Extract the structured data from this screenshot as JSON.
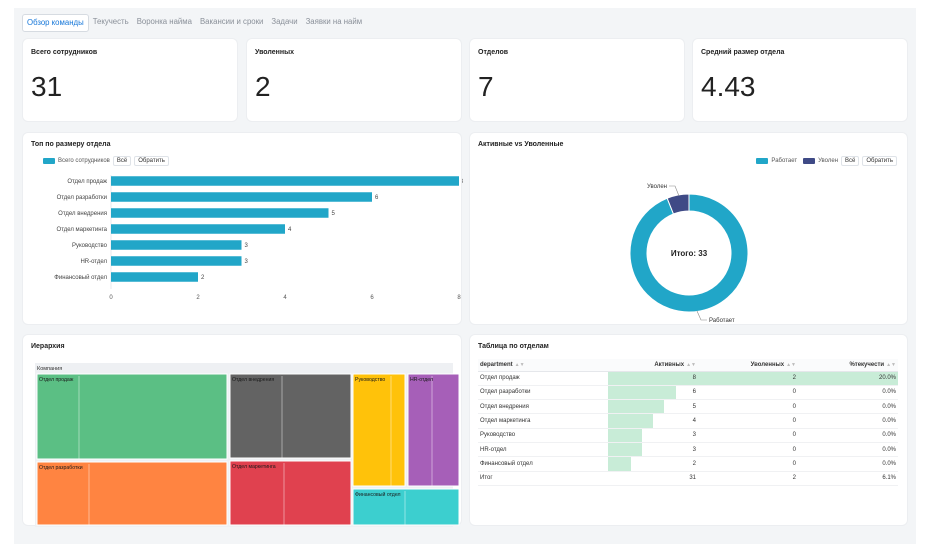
{
  "tabs": [
    {
      "label": "Обзор команды",
      "active": true
    },
    {
      "label": "Текучесть",
      "active": false
    },
    {
      "label": "Воронка найма",
      "active": false
    },
    {
      "label": "Вакансии и сроки",
      "active": false
    },
    {
      "label": "Задачи",
      "active": false
    },
    {
      "label": "Заявки на найм",
      "active": false
    }
  ],
  "kpis": [
    {
      "title": "Всего сотрудников",
      "value": "31"
    },
    {
      "title": "Уволенных",
      "value": "2"
    },
    {
      "title": "Отделов",
      "value": "7"
    },
    {
      "title": "Средний размер отдела",
      "value": "4.43"
    }
  ],
  "bar_panel": {
    "title": "Топ по размеру отдела",
    "legend_label": "Всего сотрудников",
    "btn_all": "Всё",
    "btn_invert": "Обратить",
    "color": "#21a6c8"
  },
  "donut_panel": {
    "title": "Активные vs Уволенные",
    "legend": [
      {
        "label": "Работает",
        "color": "#21a6c8"
      },
      {
        "label": "Уволен",
        "color": "#3f4a86"
      }
    ],
    "btn_all": "Всё",
    "btn_invert": "Обратить",
    "center_label": "Итого: 33",
    "callout_top": "Уволен",
    "callout_bottom": "Работает"
  },
  "treemap_panel": {
    "title": "Иерархия",
    "root_label": "Компания",
    "nodes": [
      {
        "label": "Отдел продаж",
        "color": "#5bbf84"
      },
      {
        "label": "Отдел разработки",
        "color": "#ff8441"
      },
      {
        "label": "Отдел внедрения",
        "color": "#636363"
      },
      {
        "label": "Отдел маркетинга",
        "color": "#e0414f"
      },
      {
        "label": "Руководство",
        "color": "#ffc20a"
      },
      {
        "label": "HR-отдел",
        "color": "#a65fb8"
      },
      {
        "label": "Финансовый отдел",
        "color": "#3ccfcf"
      }
    ]
  },
  "table_panel": {
    "title": "Таблица по отделам",
    "columns": [
      "department",
      "Активных",
      "Уволенных",
      "%текучести"
    ],
    "rows": [
      {
        "dept": "Отдел продаж",
        "active": "8",
        "fired": "2",
        "turnover": "20.0%",
        "active_frac": 1.0
      },
      {
        "dept": "Отдел разработки",
        "active": "6",
        "fired": "0",
        "turnover": "0.0%",
        "active_frac": 0.75
      },
      {
        "dept": "Отдел внедрения",
        "active": "5",
        "fired": "0",
        "turnover": "0.0%",
        "active_frac": 0.625
      },
      {
        "dept": "Отдел маркетинга",
        "active": "4",
        "fired": "0",
        "turnover": "0.0%",
        "active_frac": 0.5
      },
      {
        "dept": "Руководство",
        "active": "3",
        "fired": "0",
        "turnover": "0.0%",
        "active_frac": 0.375
      },
      {
        "dept": "HR-отдел",
        "active": "3",
        "fired": "0",
        "turnover": "0.0%",
        "active_frac": 0.375
      },
      {
        "dept": "Финансовый отдел",
        "active": "2",
        "fired": "0",
        "turnover": "0.0%",
        "active_frac": 0.25
      }
    ],
    "total": {
      "dept": "Итог",
      "active": "31",
      "fired": "2",
      "turnover": "6.1%"
    }
  },
  "chart_data": [
    {
      "type": "bar",
      "orientation": "horizontal",
      "title": "Топ по размеру отдела",
      "categories": [
        "Отдел продаж",
        "Отдел разработки",
        "Отдел внедрения",
        "Отдел маркетинга",
        "Руководство",
        "HR-отдел",
        "Финансовый отдел"
      ],
      "series": [
        {
          "name": "Всего сотрудников",
          "values": [
            8,
            6,
            5,
            4,
            3,
            3,
            2
          ]
        }
      ],
      "xlim": [
        0,
        8
      ],
      "xticks": [
        0,
        2,
        4,
        6,
        8
      ],
      "grid": false,
      "legend": "top-left"
    },
    {
      "type": "pie",
      "title": "Активные vs Уволенные",
      "categories": [
        "Работает",
        "Уволен"
      ],
      "values": [
        31,
        2
      ],
      "legend": "top-right"
    }
  ]
}
